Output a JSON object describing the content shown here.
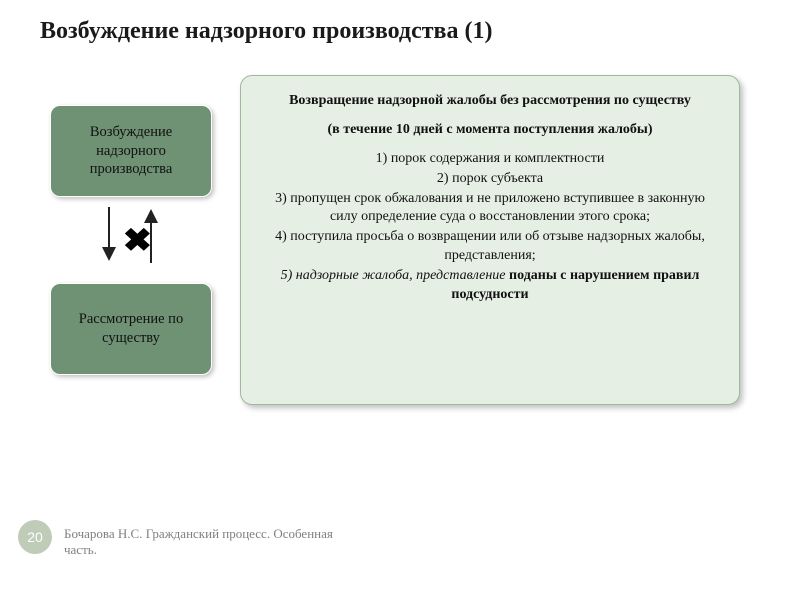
{
  "title": "Возбуждение надзорного производства (1)",
  "left": {
    "node1": "Возбуждение надзорного производства",
    "node2": "Рассмотрение по существу",
    "x_glyph": "✖"
  },
  "right": {
    "heading1": "Возвращение надзорной жалобы без рассмотрения по существу",
    "heading2": "(в течение 10 дней с момента поступления жалобы)",
    "items": {
      "i1": "1) порок содержания и комплектности",
      "i2": "2) порок субъекта",
      "i3": "3) пропущен срок обжалования и не приложено вступившее в законную силу определение суда о восстановлении этого срока;",
      "i4": "4) поступила просьба о возвращении или об отзыве надзорных жалобы, представления;",
      "i5_pre": "5) надзорные жалоба, представление ",
      "i5_bold": "поданы с нарушением правил подсудности"
    }
  },
  "footer": {
    "page": "20",
    "text": "Бочарова Н.С. Гражданский процесс. Особенная часть."
  },
  "colors": {
    "node_bg": "#6f9174",
    "panel_bg": "#e6efe4",
    "panel_border": "#9fb89e",
    "pagenum_bg": "#bfccb8"
  }
}
